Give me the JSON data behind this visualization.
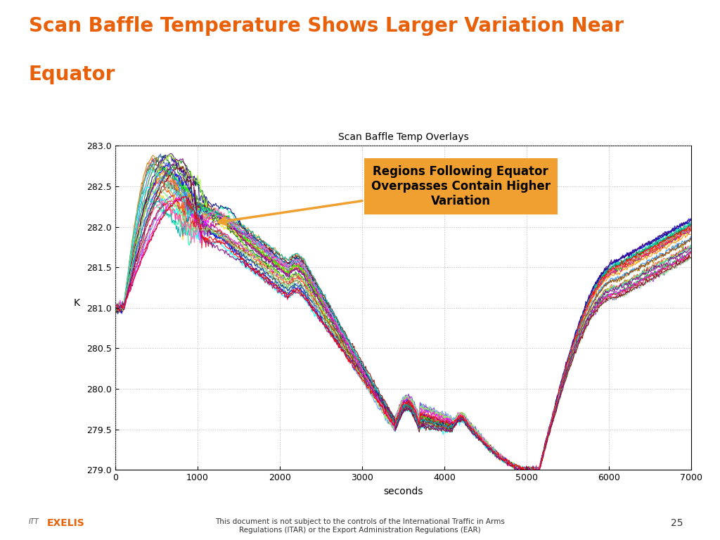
{
  "title_line1": "Scan Baffle Temperature Shows Larger Variation Near",
  "title_line2": "Equator",
  "chart_title": "Scan Baffle Temp Overlays",
  "xlabel": "seconds",
  "ylabel": "K",
  "xlim": [
    0,
    7000
  ],
  "ylim": [
    279,
    283
  ],
  "yticks": [
    279,
    279.5,
    280,
    280.5,
    281,
    281.5,
    282,
    282.5,
    283
  ],
  "xticks": [
    0,
    1000,
    2000,
    3000,
    4000,
    5000,
    6000,
    7000
  ],
  "title_color": "#E8610A",
  "background_color": "#FFFFFF",
  "n_lines": 35,
  "annotation_text": "Regions Following Equator\nOverpasses Contain Higher\nVariation",
  "annotation_box_color": "#F0A030",
  "arrow_color": "#F0A030",
  "footer_text": "This document is not subject to the controls of the International Traffic in Arms\nRegulations (ITAR) or the Export Administration Regulations (EAR)",
  "page_number": "25",
  "itt_color": "#555555",
  "exelis_color": "#E8610A"
}
